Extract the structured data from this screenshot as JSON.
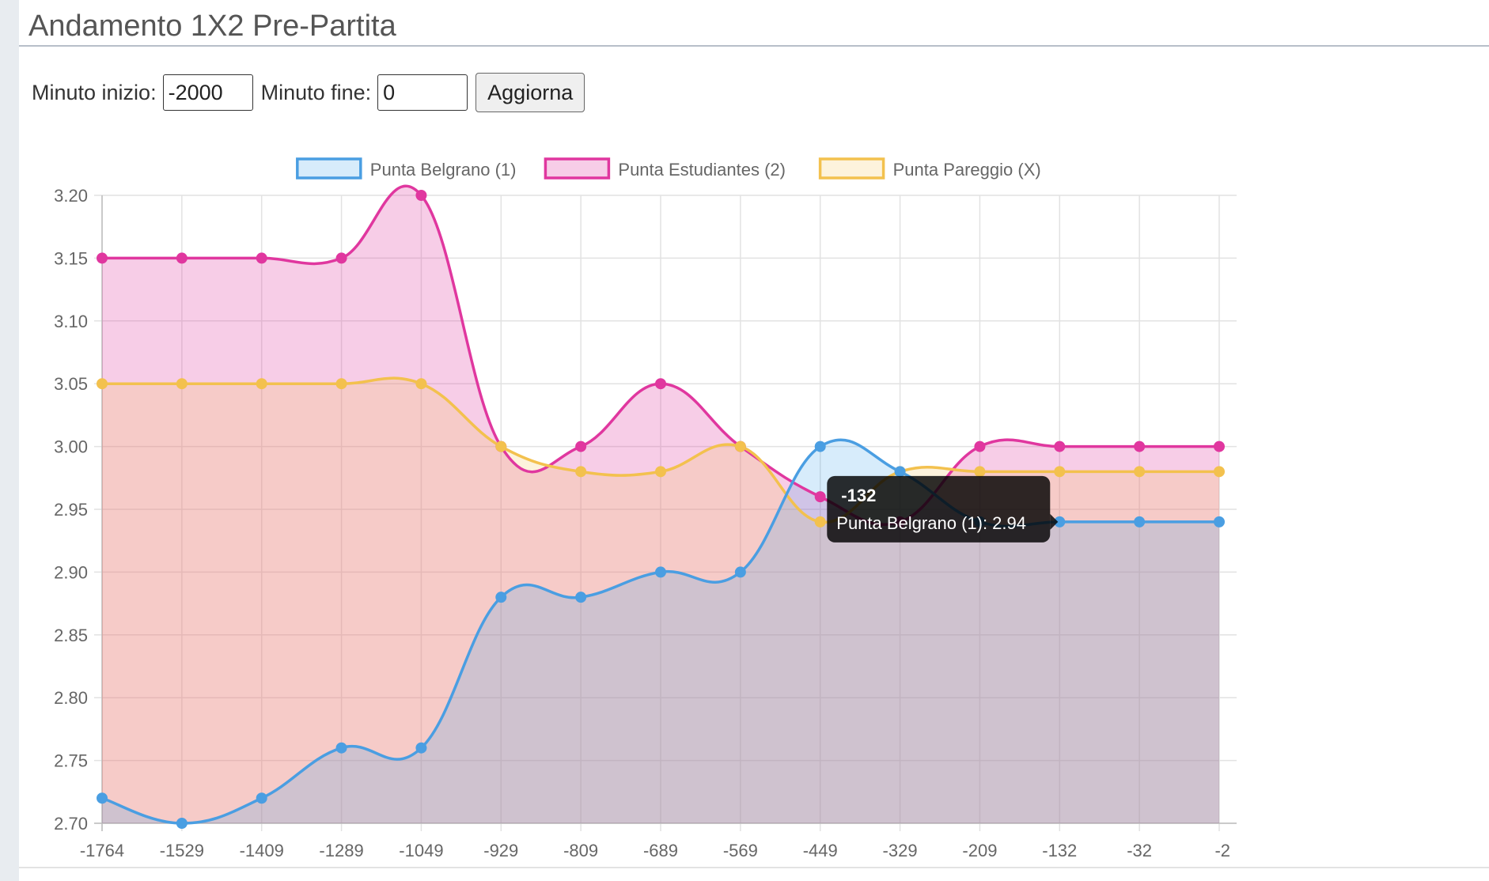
{
  "page_title": "Andamento 1X2 Pre-Partita",
  "controls": {
    "start_label": "Minuto inizio:",
    "start_value": "-2000",
    "end_label": "Minuto fine:",
    "end_value": "0",
    "update_label": "Aggiorna"
  },
  "chart_data": {
    "type": "area",
    "categories": [
      "-1764",
      "-1529",
      "-1409",
      "-1289",
      "-1049",
      "-929",
      "-809",
      "-689",
      "-569",
      "-449",
      "-329",
      "-209",
      "-132",
      "-32",
      "-2"
    ],
    "ylim": [
      2.7,
      3.2
    ],
    "yticks": [
      "3.20",
      "3.15",
      "3.10",
      "3.05",
      "3.00",
      "2.95",
      "2.90",
      "2.85",
      "2.80",
      "2.75",
      "2.70"
    ],
    "grid": true,
    "legend_position": "top",
    "series": [
      {
        "name": "Punta Belgrano (1)",
        "color": "#4a9ee2",
        "fill": "rgba(54,162,235,0.2)",
        "values": [
          2.72,
          2.7,
          2.72,
          2.76,
          2.76,
          2.88,
          2.88,
          2.9,
          2.9,
          3.0,
          2.98,
          2.94,
          2.94,
          2.94,
          2.94
        ]
      },
      {
        "name": "Punta Estudiantes (2)",
        "color": "#e0379f",
        "fill": "rgba(224,55,159,0.25)",
        "values": [
          3.15,
          3.15,
          3.15,
          3.15,
          3.2,
          3.0,
          3.0,
          3.05,
          3.0,
          2.96,
          2.94,
          3.0,
          3.0,
          3.0,
          3.0
        ]
      },
      {
        "name": "Punta Pareggio (X)",
        "color": "#f3c14e",
        "fill": "rgba(243,193,78,0.2)",
        "values": [
          3.05,
          3.05,
          3.05,
          3.05,
          3.05,
          3.0,
          2.98,
          2.98,
          3.0,
          2.94,
          2.98,
          2.98,
          2.98,
          2.98,
          2.98
        ]
      }
    ],
    "tooltip": {
      "title": "-132",
      "body": "Punta Belgrano (1): 2.94",
      "category_index": 12,
      "series_index": 0
    }
  }
}
